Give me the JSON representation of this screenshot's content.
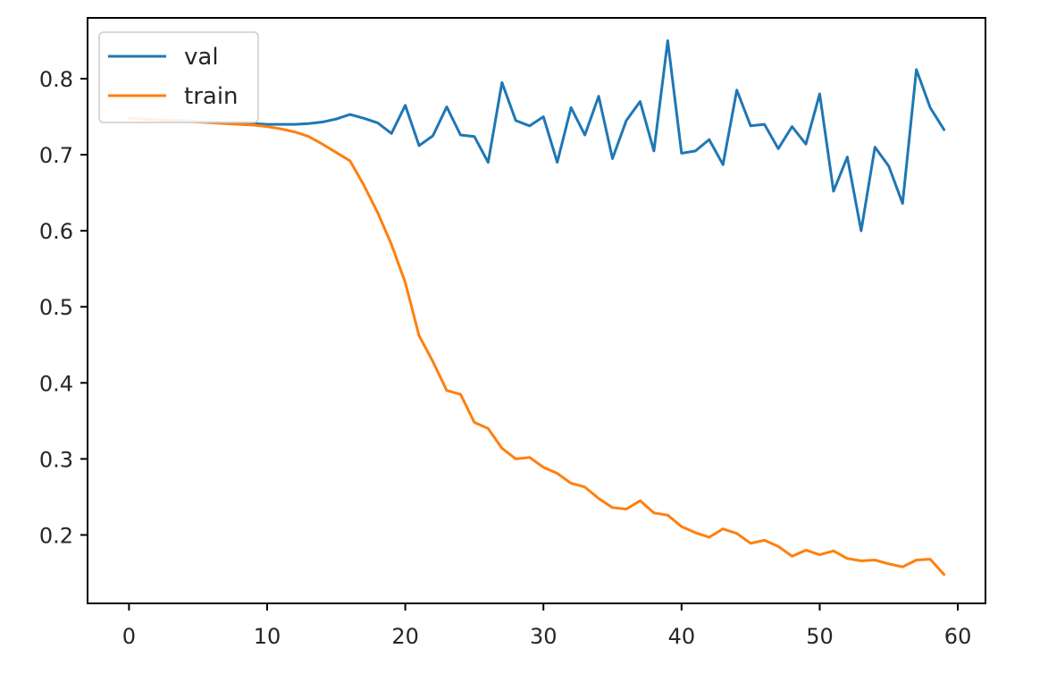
{
  "chart_data": {
    "type": "line",
    "title": "",
    "xlabel": "",
    "ylabel": "",
    "xlim": [
      -3,
      62
    ],
    "ylim": [
      0.11,
      0.88
    ],
    "xticks": [
      0,
      10,
      20,
      30,
      40,
      50,
      60
    ],
    "yticks": [
      0.2,
      0.3,
      0.4,
      0.5,
      0.6,
      0.7,
      0.8
    ],
    "grid": false,
    "legend": {
      "position": "top-left"
    },
    "x": [
      0,
      1,
      2,
      3,
      4,
      5,
      6,
      7,
      8,
      9,
      10,
      11,
      12,
      13,
      14,
      15,
      16,
      17,
      18,
      19,
      20,
      21,
      22,
      23,
      24,
      25,
      26,
      27,
      28,
      29,
      30,
      31,
      32,
      33,
      34,
      35,
      36,
      37,
      38,
      39,
      40,
      41,
      42,
      43,
      44,
      45,
      46,
      47,
      48,
      49,
      50,
      51,
      52,
      53,
      54,
      55,
      56,
      57,
      58,
      59
    ],
    "series": [
      {
        "name": "val",
        "color": "#1f77b4",
        "values": [
          0.748,
          0.747,
          0.746,
          0.745,
          0.745,
          0.744,
          0.743,
          0.742,
          0.742,
          0.741,
          0.74,
          0.74,
          0.74,
          0.741,
          0.743,
          0.747,
          0.753,
          0.748,
          0.742,
          0.728,
          0.765,
          0.712,
          0.725,
          0.763,
          0.726,
          0.724,
          0.69,
          0.795,
          0.745,
          0.738,
          0.75,
          0.69,
          0.762,
          0.726,
          0.777,
          0.695,
          0.745,
          0.77,
          0.705,
          0.85,
          0.702,
          0.705,
          0.72,
          0.687,
          0.785,
          0.738,
          0.74,
          0.708,
          0.737,
          0.714,
          0.78,
          0.652,
          0.697,
          0.6,
          0.71,
          0.685,
          0.636,
          0.812,
          0.762,
          0.733
        ]
      },
      {
        "name": "train",
        "color": "#ff7f0e",
        "values": [
          0.748,
          0.747,
          0.746,
          0.745,
          0.744,
          0.743,
          0.742,
          0.741,
          0.74,
          0.739,
          0.737,
          0.734,
          0.73,
          0.724,
          0.714,
          0.703,
          0.692,
          0.66,
          0.624,
          0.582,
          0.532,
          0.462,
          0.428,
          0.39,
          0.385,
          0.348,
          0.34,
          0.314,
          0.3,
          0.302,
          0.289,
          0.281,
          0.268,
          0.263,
          0.248,
          0.236,
          0.234,
          0.245,
          0.229,
          0.226,
          0.211,
          0.203,
          0.197,
          0.208,
          0.202,
          0.189,
          0.193,
          0.185,
          0.172,
          0.18,
          0.174,
          0.179,
          0.169,
          0.166,
          0.167,
          0.162,
          0.158,
          0.167,
          0.168,
          0.148
        ]
      }
    ]
  }
}
